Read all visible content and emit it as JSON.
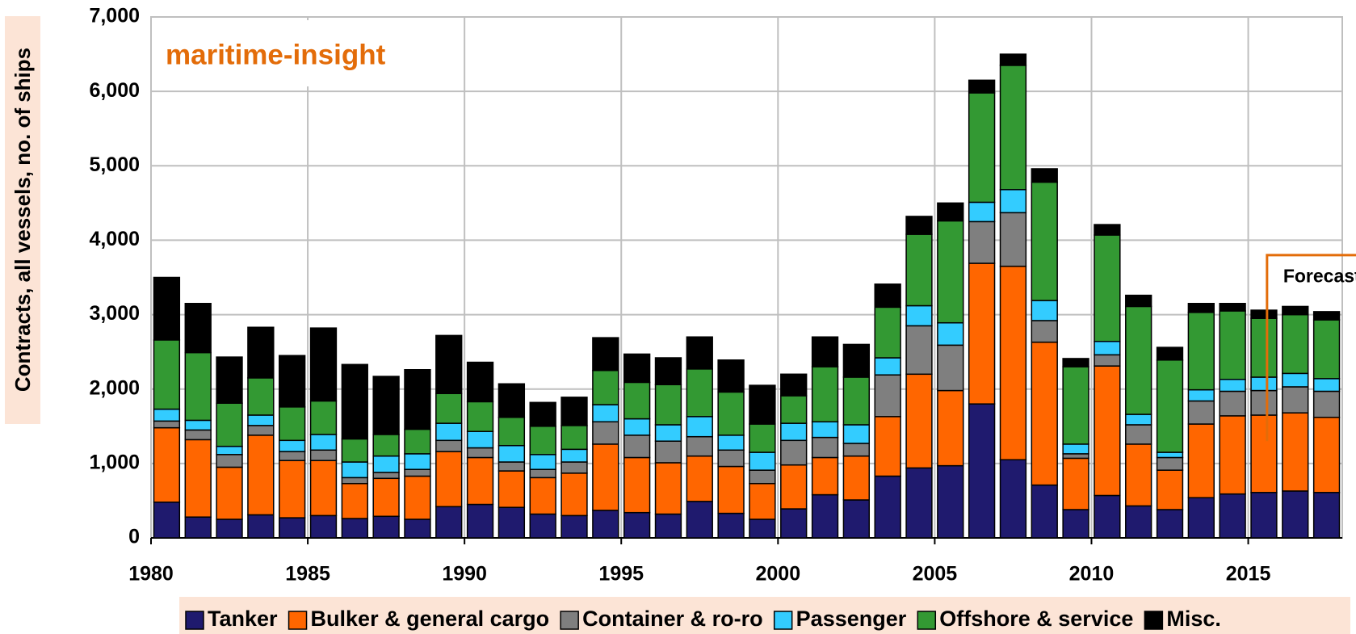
{
  "chart_data": {
    "type": "stacked-bar",
    "title": "maritime-insight",
    "y_label": "Contracts, all vessels, no. of ships",
    "annotation": "Forecast",
    "categories": [
      "1980",
      null,
      null,
      null,
      null,
      "1985",
      null,
      null,
      null,
      null,
      "1990",
      null,
      null,
      null,
      null,
      "1995",
      null,
      null,
      null,
      null,
      "2000",
      null,
      null,
      null,
      null,
      "2005",
      null,
      null,
      null,
      null,
      "2010",
      null,
      null,
      null,
      null,
      "2015",
      null,
      null
    ],
    "series": [
      {
        "name": "Tanker",
        "color": "#1f1a6e",
        "values": [
          480,
          280,
          250,
          310,
          270,
          300,
          260,
          290,
          250,
          420,
          450,
          410,
          320,
          300,
          370,
          340,
          320,
          490,
          330,
          250,
          390,
          580,
          510,
          830,
          940,
          970,
          1800,
          1050,
          710,
          380,
          570,
          430,
          380,
          540,
          590,
          610,
          630,
          610
        ]
      },
      {
        "name": "Bulker & general cargo",
        "color": "#ff6600",
        "values": [
          1000,
          1040,
          700,
          1070,
          770,
          740,
          470,
          510,
          580,
          740,
          630,
          490,
          490,
          570,
          890,
          740,
          690,
          610,
          630,
          480,
          590,
          500,
          590,
          800,
          1260,
          1010,
          1890,
          2600,
          1920,
          690,
          1740,
          830,
          530,
          990,
          1050,
          1040,
          1050,
          1010
        ]
      },
      {
        "name": "Container & ro-ro",
        "color": "#7f7f7f",
        "values": [
          90,
          130,
          170,
          130,
          120,
          140,
          80,
          80,
          90,
          150,
          130,
          120,
          110,
          150,
          300,
          300,
          290,
          260,
          220,
          180,
          330,
          270,
          170,
          560,
          650,
          610,
          560,
          720,
          290,
          60,
          150,
          260,
          170,
          310,
          330,
          330,
          350,
          350
        ]
      },
      {
        "name": "Passenger",
        "color": "#33ccff",
        "values": [
          160,
          130,
          110,
          140,
          150,
          210,
          210,
          220,
          210,
          230,
          220,
          220,
          200,
          170,
          230,
          220,
          220,
          270,
          200,
          240,
          230,
          210,
          250,
          230,
          270,
          300,
          260,
          310,
          270,
          130,
          180,
          140,
          70,
          150,
          160,
          180,
          180,
          170
        ]
      },
      {
        "name": "Offshore & service",
        "color": "#339933",
        "values": [
          930,
          910,
          580,
          500,
          450,
          450,
          310,
          290,
          330,
          400,
          400,
          380,
          380,
          320,
          460,
          490,
          540,
          640,
          580,
          380,
          370,
          740,
          640,
          680,
          960,
          1370,
          1470,
          1670,
          1590,
          1040,
          1430,
          1450,
          1240,
          1040,
          920,
          790,
          790,
          790
        ]
      },
      {
        "name": "Misc.",
        "color": "#000000",
        "values": [
          840,
          660,
          620,
          680,
          690,
          980,
          1000,
          780,
          800,
          780,
          530,
          450,
          320,
          380,
          440,
          380,
          360,
          430,
          430,
          520,
          290,
          400,
          440,
          310,
          240,
          240,
          170,
          150,
          180,
          110,
          140,
          150,
          170,
          120,
          100,
          110,
          110,
          110
        ]
      }
    ],
    "ylim": [
      0,
      7000
    ],
    "yticks": [
      0,
      {
        "value": 1000,
        "label": "1,000"
      },
      {
        "value": 2000,
        "label": "2,000"
      },
      {
        "value": 3000,
        "label": "3,000"
      },
      {
        "value": 4000,
        "label": "4,000"
      },
      {
        "value": 5000,
        "label": "5,000"
      },
      {
        "value": 6000,
        "label": "6,000"
      },
      {
        "value": 7000,
        "label": "7,000"
      }
    ],
    "grid": true,
    "legend": "bottom"
  }
}
